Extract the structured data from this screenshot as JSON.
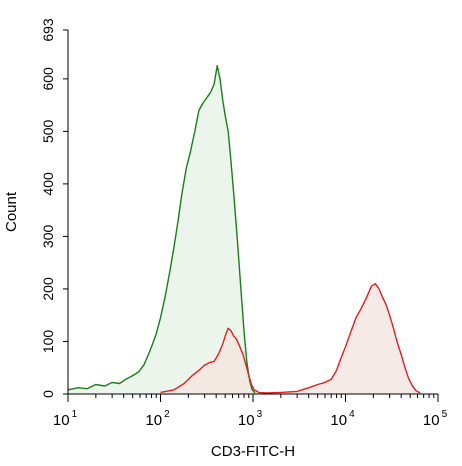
{
  "chart_data": {
    "type": "area",
    "xlabel": "CD3-FITC-H",
    "ylabel": "Count",
    "xscale": "log",
    "xlim": [
      10,
      100000
    ],
    "ylim": [
      0,
      693
    ],
    "x_ticks": [
      {
        "base": "10",
        "exp": "1",
        "value": 10
      },
      {
        "base": "10",
        "exp": "2",
        "value": 100
      },
      {
        "base": "10",
        "exp": "3",
        "value": 1000
      },
      {
        "base": "10",
        "exp": "4",
        "value": 10000
      },
      {
        "base": "10",
        "exp": "5",
        "value": 100000
      }
    ],
    "y_ticks": [
      "0",
      "100",
      "200",
      "300",
      "400",
      "500",
      "600",
      "693"
    ],
    "grid": false,
    "legend": "none",
    "series": [
      {
        "color": "#1a7f1a",
        "fill": "#e8f3e8",
        "points": [
          [
            10,
            8
          ],
          [
            13,
            12
          ],
          [
            16,
            10
          ],
          [
            20,
            18
          ],
          [
            25,
            15
          ],
          [
            30,
            22
          ],
          [
            36,
            20
          ],
          [
            42,
            28
          ],
          [
            50,
            35
          ],
          [
            58,
            42
          ],
          [
            66,
            55
          ],
          [
            74,
            75
          ],
          [
            82,
            95
          ],
          [
            90,
            115
          ],
          [
            100,
            145
          ],
          [
            112,
            185
          ],
          [
            125,
            230
          ],
          [
            140,
            280
          ],
          [
            155,
            330
          ],
          [
            170,
            380
          ],
          [
            190,
            430
          ],
          [
            210,
            460
          ],
          [
            235,
            500
          ],
          [
            260,
            540
          ],
          [
            290,
            555
          ],
          [
            320,
            565
          ],
          [
            350,
            575
          ],
          [
            380,
            590
          ],
          [
            410,
            625
          ],
          [
            440,
            600
          ],
          [
            470,
            560
          ],
          [
            500,
            530
          ],
          [
            540,
            500
          ],
          [
            580,
            440
          ],
          [
            620,
            380
          ],
          [
            680,
            290
          ],
          [
            740,
            200
          ],
          [
            800,
            120
          ],
          [
            860,
            60
          ],
          [
            920,
            25
          ],
          [
            980,
            8
          ],
          [
            1050,
            2
          ]
        ]
      },
      {
        "color": "#e02020",
        "fill": "#f3e6e0",
        "points": [
          [
            100,
            3
          ],
          [
            140,
            8
          ],
          [
            180,
            20
          ],
          [
            220,
            35
          ],
          [
            260,
            45
          ],
          [
            300,
            55
          ],
          [
            340,
            60
          ],
          [
            380,
            62
          ],
          [
            420,
            75
          ],
          [
            470,
            95
          ],
          [
            510,
            115
          ],
          [
            540,
            125
          ],
          [
            580,
            120
          ],
          [
            620,
            110
          ],
          [
            660,
            105
          ],
          [
            720,
            90
          ],
          [
            780,
            75
          ],
          [
            840,
            55
          ],
          [
            900,
            35
          ],
          [
            960,
            18
          ],
          [
            1030,
            8
          ],
          [
            1150,
            3
          ],
          [
            1400,
            2
          ],
          [
            2000,
            3
          ],
          [
            3000,
            5
          ],
          [
            4000,
            12
          ],
          [
            5000,
            18
          ],
          [
            6000,
            22
          ],
          [
            7000,
            28
          ],
          [
            8000,
            45
          ],
          [
            9000,
            70
          ],
          [
            10000,
            90
          ],
          [
            11500,
            120
          ],
          [
            13000,
            145
          ],
          [
            15000,
            165
          ],
          [
            17000,
            185
          ],
          [
            19000,
            205
          ],
          [
            21000,
            210
          ],
          [
            23000,
            200
          ],
          [
            25000,
            185
          ],
          [
            27500,
            170
          ],
          [
            30000,
            150
          ],
          [
            33000,
            125
          ],
          [
            36000,
            100
          ],
          [
            40000,
            75
          ],
          [
            44000,
            50
          ],
          [
            48000,
            30
          ],
          [
            53000,
            15
          ],
          [
            58000,
            6
          ],
          [
            64000,
            2
          ]
        ]
      }
    ]
  }
}
